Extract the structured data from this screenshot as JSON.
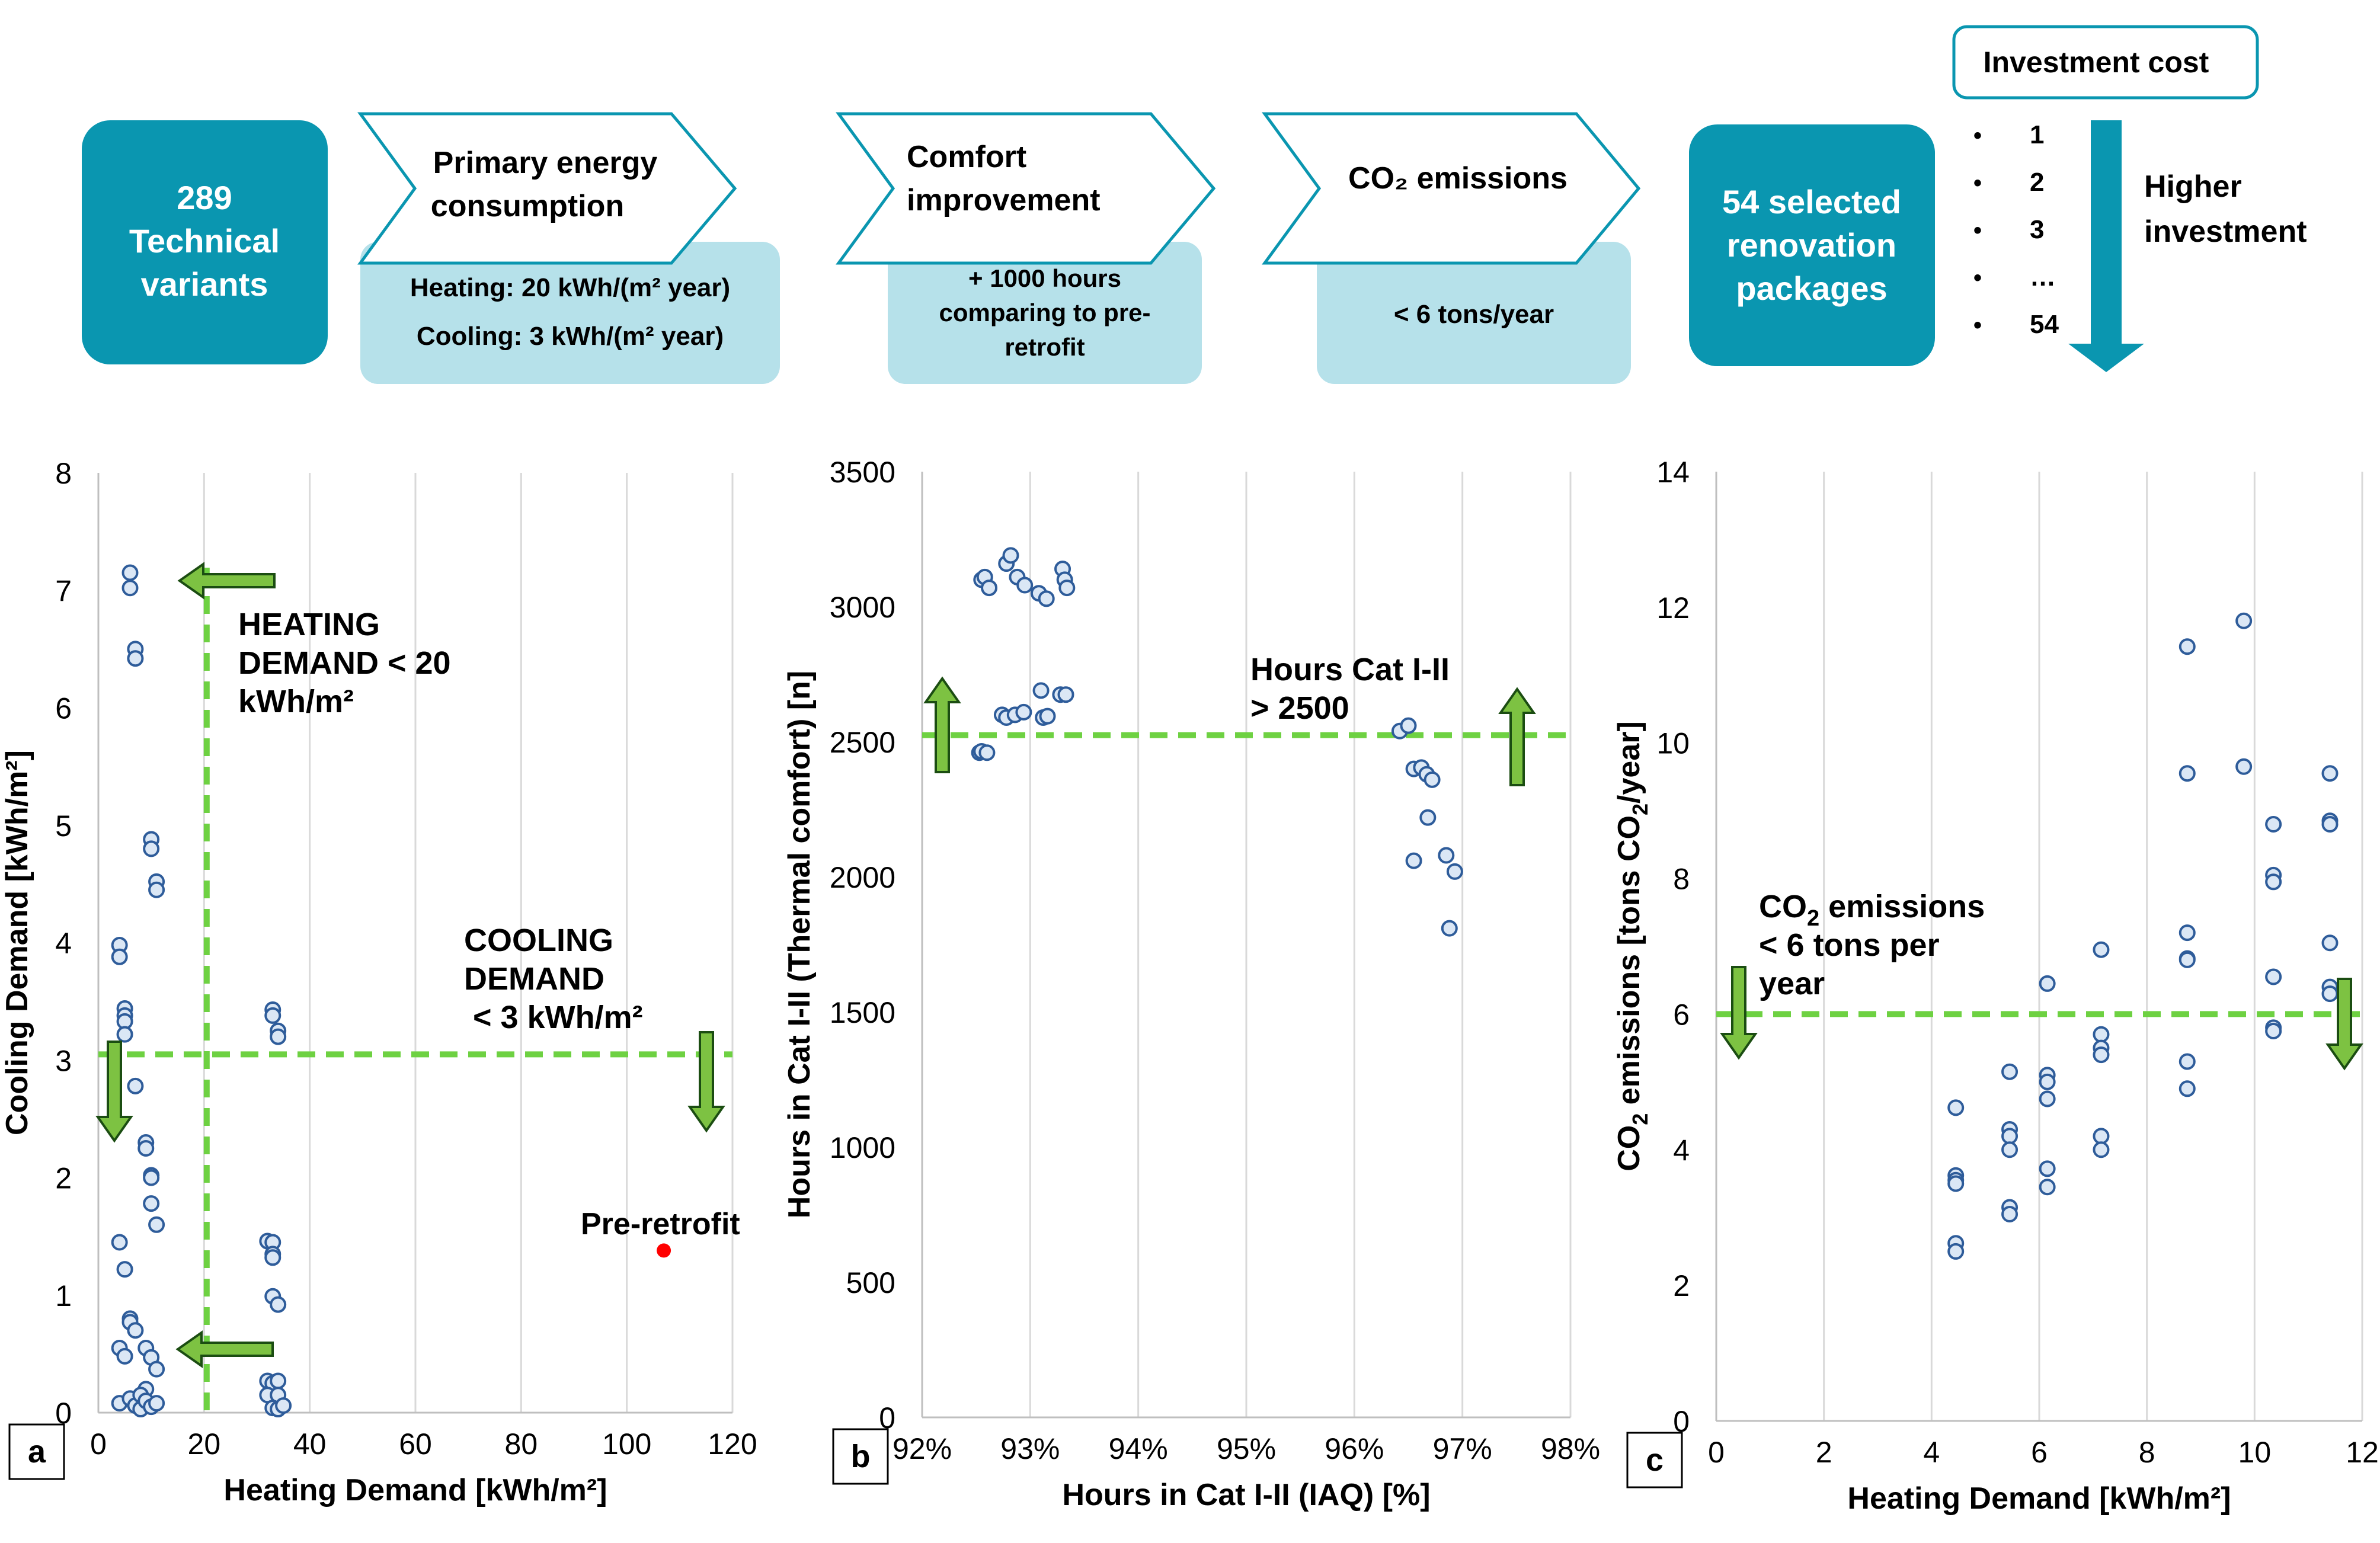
{
  "workflow": {
    "start_box": [
      "289",
      "Technical",
      "variants"
    ],
    "steps": [
      {
        "title_lines": [
          "Primary energy",
          "consumption"
        ],
        "criteria_lines": [
          "Heating: 20 kWh/(m² year)",
          "Cooling: 3 kWh/(m² year)"
        ]
      },
      {
        "title_lines": [
          "Comfort",
          "improvement"
        ],
        "criteria_lines": [
          "+ 1000 hours",
          "comparing to pre-",
          "retrofit"
        ]
      },
      {
        "title_lines": [
          "CO₂ emissions"
        ],
        "criteria_lines": [
          "< 6 tons/year"
        ]
      }
    ],
    "result_box": [
      "54 selected",
      "renovation",
      "packages"
    ],
    "investment": {
      "title": "Investment cost",
      "list": [
        "1",
        "2",
        "3",
        "…",
        "54"
      ],
      "arrow_label": [
        "Higher",
        "investment"
      ]
    }
  },
  "colors": {
    "teal": "#0a96b0",
    "light_teal": "#b6e1ea",
    "green": "#7dc242",
    "green_dashed": "#6ed142",
    "marker_face": "#dbe7f5",
    "marker_edge": "#2e5c9a",
    "red": "#ff0000"
  },
  "chart_data": [
    {
      "type": "scatter",
      "panel_label": "a",
      "title": "",
      "xlabel": "Heating Demand [kWh/m²]",
      "ylabel": "Cooling Demand [kWh/m²]",
      "xlim": [
        0,
        120
      ],
      "ylim": [
        0,
        8
      ],
      "xticks": [
        0,
        20,
        40,
        60,
        80,
        100,
        120
      ],
      "yticks": [
        0,
        1,
        2,
        3,
        4,
        5,
        6,
        7,
        8
      ],
      "xticklabels": [
        "0",
        "20",
        "40",
        "60",
        "80",
        "100",
        "120"
      ],
      "yticklabels": [
        "0",
        "1",
        "2",
        "3",
        "4",
        "5",
        "6",
        "7",
        "8"
      ],
      "threshold_x": 20.5,
      "threshold_y": 3.05,
      "annotations": [
        {
          "lines": [
            "HEATING",
            "DEMAND < 20",
            "kWh/m²"
          ]
        },
        {
          "lines": [
            "COOLING",
            "DEMAND",
            " < 3 kWh/m²"
          ]
        },
        {
          "lines": [
            "Pre-retrofit"
          ]
        }
      ],
      "highlight_point": {
        "name": "Pre-retrofit",
        "x": 107,
        "y": 1.38
      },
      "points": [
        [
          6,
          7.15
        ],
        [
          6,
          7.02
        ],
        [
          7,
          6.5
        ],
        [
          7,
          6.42
        ],
        [
          10,
          4.88
        ],
        [
          10,
          4.8
        ],
        [
          11,
          4.52
        ],
        [
          11,
          4.45
        ],
        [
          4,
          3.98
        ],
        [
          4,
          3.88
        ],
        [
          5,
          3.44
        ],
        [
          5,
          3.38
        ],
        [
          5,
          3.33
        ],
        [
          5,
          3.22
        ],
        [
          7,
          2.78
        ],
        [
          9,
          2.3
        ],
        [
          9,
          2.25
        ],
        [
          10,
          2.02
        ],
        [
          10,
          2.0
        ],
        [
          10,
          1.78
        ],
        [
          11,
          1.6
        ],
        [
          4,
          1.45
        ],
        [
          5,
          1.22
        ],
        [
          6,
          0.8
        ],
        [
          6,
          0.77
        ],
        [
          7,
          0.7
        ],
        [
          4,
          0.55
        ],
        [
          9,
          0.55
        ],
        [
          5,
          0.48
        ],
        [
          10,
          0.47
        ],
        [
          11,
          0.37
        ],
        [
          9,
          0.2
        ],
        [
          4,
          0.08
        ],
        [
          6,
          0.12
        ],
        [
          7,
          0.06
        ],
        [
          8,
          0.15
        ],
        [
          8,
          0.03
        ],
        [
          9,
          0.1
        ],
        [
          10,
          0.05
        ],
        [
          11,
          0.08
        ],
        [
          33,
          3.43
        ],
        [
          33,
          3.38
        ],
        [
          34,
          3.25
        ],
        [
          34,
          3.2
        ],
        [
          32,
          1.46
        ],
        [
          33,
          1.45
        ],
        [
          33,
          1.35
        ],
        [
          33,
          1.32
        ],
        [
          33,
          0.99
        ],
        [
          34,
          0.92
        ],
        [
          32,
          0.27
        ],
        [
          33,
          0.25
        ],
        [
          34,
          0.27
        ],
        [
          32,
          0.15
        ],
        [
          34,
          0.15
        ],
        [
          33,
          0.04
        ],
        [
          34,
          0.03
        ],
        [
          35,
          0.06
        ]
      ]
    },
    {
      "type": "scatter",
      "panel_label": "b",
      "title": "",
      "xlabel": "Hours in Cat I-II (IAQ) [%]",
      "ylabel": "Hours in Cat I-II  (Thermal comfort) [n]",
      "xlim": [
        92,
        98
      ],
      "ylim": [
        0,
        3500
      ],
      "xticks": [
        92,
        93,
        94,
        95,
        96,
        97,
        98
      ],
      "yticks": [
        0,
        500,
        1000,
        1500,
        2000,
        2500,
        3000,
        3500
      ],
      "xticklabels": [
        "92%",
        "93%",
        "94%",
        "95%",
        "96%",
        "97%",
        "98%"
      ],
      "yticklabels": [
        "0",
        "500",
        "1000",
        "1500",
        "2000",
        "2500",
        "3000",
        "3500"
      ],
      "threshold_y": 2525,
      "annotations": [
        {
          "lines": [
            "Hours Cat I-II",
            "> 2500"
          ]
        }
      ],
      "points": [
        [
          92.55,
          3100
        ],
        [
          92.58,
          3110
        ],
        [
          92.62,
          3070
        ],
        [
          92.78,
          3160
        ],
        [
          92.82,
          3190
        ],
        [
          92.88,
          3110
        ],
        [
          92.95,
          3080
        ],
        [
          93.08,
          3050
        ],
        [
          93.15,
          3030
        ],
        [
          93.3,
          3140
        ],
        [
          93.32,
          3100
        ],
        [
          93.34,
          3070
        ],
        [
          92.74,
          2600
        ],
        [
          92.78,
          2590
        ],
        [
          92.86,
          2600
        ],
        [
          92.94,
          2610
        ],
        [
          93.1,
          2690
        ],
        [
          93.12,
          2590
        ],
        [
          93.16,
          2595
        ],
        [
          93.28,
          2675
        ],
        [
          93.33,
          2675
        ],
        [
          92.53,
          2460
        ],
        [
          92.55,
          2465
        ],
        [
          92.6,
          2460
        ],
        [
          96.42,
          2540
        ],
        [
          96.5,
          2560
        ],
        [
          96.55,
          2400
        ],
        [
          96.62,
          2405
        ],
        [
          96.67,
          2380
        ],
        [
          96.72,
          2360
        ],
        [
          96.68,
          2220
        ],
        [
          96.55,
          2060
        ],
        [
          96.85,
          2080
        ],
        [
          96.93,
          2020
        ],
        [
          96.88,
          1810
        ]
      ]
    },
    {
      "type": "scatter",
      "panel_label": "c",
      "title": "",
      "xlabel": "Heating Demand [kWh/m²]",
      "ylabel": "CO₂ emissions [tons CO₂/year]",
      "xlim": [
        0,
        12
      ],
      "ylim": [
        0,
        14
      ],
      "xticks": [
        0,
        2,
        4,
        6,
        8,
        10,
        12
      ],
      "yticks": [
        0,
        2,
        4,
        6,
        8,
        10,
        12,
        14
      ],
      "xticklabels": [
        "0",
        "2",
        "4",
        "6",
        "8",
        "10",
        "12"
      ],
      "yticklabels": [
        "0",
        "2",
        "4",
        "6",
        "8",
        "10",
        "12",
        "14"
      ],
      "threshold_y": 6,
      "annotations": [
        {
          "lines": [
            "CO₂ emissions",
            "< 6 tons per",
            "year"
          ]
        }
      ],
      "points": [
        [
          4.45,
          4.62
        ],
        [
          4.45,
          3.62
        ],
        [
          4.45,
          3.55
        ],
        [
          4.45,
          3.5
        ],
        [
          4.45,
          2.62
        ],
        [
          4.45,
          2.5
        ],
        [
          5.45,
          5.15
        ],
        [
          5.45,
          4.3
        ],
        [
          5.45,
          4.2
        ],
        [
          5.45,
          4.0
        ],
        [
          5.45,
          3.15
        ],
        [
          5.45,
          3.05
        ],
        [
          6.15,
          6.45
        ],
        [
          6.15,
          5.1
        ],
        [
          6.15,
          5.0
        ],
        [
          6.15,
          4.75
        ],
        [
          6.15,
          3.72
        ],
        [
          6.15,
          3.45
        ],
        [
          7.15,
          6.95
        ],
        [
          7.15,
          5.7
        ],
        [
          7.15,
          5.5
        ],
        [
          7.15,
          5.4
        ],
        [
          7.15,
          4.2
        ],
        [
          7.15,
          4.0
        ],
        [
          8.75,
          11.42
        ],
        [
          8.75,
          9.55
        ],
        [
          8.75,
          7.2
        ],
        [
          8.75,
          6.82
        ],
        [
          8.75,
          6.8
        ],
        [
          8.75,
          5.3
        ],
        [
          8.75,
          4.9
        ],
        [
          9.8,
          11.8
        ],
        [
          9.8,
          9.65
        ],
        [
          10.35,
          8.8
        ],
        [
          10.35,
          8.05
        ],
        [
          10.35,
          7.95
        ],
        [
          10.35,
          6.55
        ],
        [
          10.35,
          5.8
        ],
        [
          10.35,
          5.75
        ],
        [
          11.4,
          9.55
        ],
        [
          11.4,
          8.85
        ],
        [
          11.4,
          8.8
        ],
        [
          11.4,
          7.05
        ],
        [
          11.4,
          6.4
        ],
        [
          11.4,
          6.3
        ]
      ]
    }
  ]
}
